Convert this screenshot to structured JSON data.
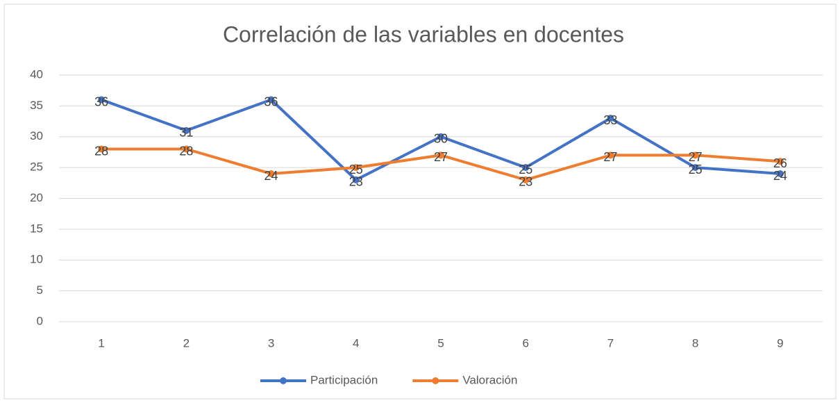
{
  "chart_data": {
    "type": "line",
    "title": "Correlación de las variables  en docentes",
    "categories": [
      "1",
      "2",
      "3",
      "4",
      "5",
      "6",
      "7",
      "8",
      "9"
    ],
    "series": [
      {
        "name": "Participación",
        "color": "#4472c4",
        "values": [
          36,
          31,
          36,
          23,
          30,
          25,
          33,
          25,
          24
        ]
      },
      {
        "name": "Valoración",
        "color": "#ed7d31",
        "values": [
          28,
          28,
          24,
          25,
          27,
          23,
          27,
          27,
          26
        ]
      }
    ],
    "ylim": [
      0,
      40
    ],
    "yticks": [
      0,
      5,
      10,
      15,
      20,
      25,
      30,
      35,
      40
    ],
    "grid": true,
    "legend": "bottom"
  }
}
